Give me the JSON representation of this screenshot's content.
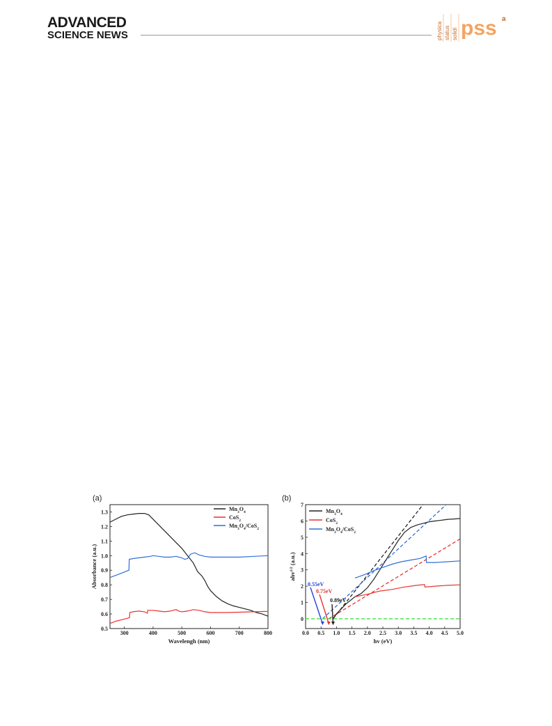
{
  "header": {
    "brand_line1": "ADVANCED",
    "brand_line2": "SCIENCE NEWS",
    "journal_vertical": [
      "physica",
      "status",
      "solidi"
    ],
    "journal_logo": "pss",
    "journal_suffix": "a",
    "colors": {
      "logo": "#f4a460",
      "text": "#1a1a1a",
      "rule": "#9a9a9a"
    }
  },
  "figure": {
    "panel_a_tag": "(a)",
    "panel_b_tag": "(b)",
    "panel_b_ylabel_main": "ahv",
    "panel_b_ylabel_sup": "1/2",
    "panel_b_ylabel_unit": " (a.u.)"
  },
  "chart_data": [
    {
      "type": "line",
      "title": "",
      "xlabel": "Wavelengh (nm)",
      "ylabel": "Absorbance (a.u.)",
      "xlim": [
        250,
        800
      ],
      "ylim": [
        0.5,
        1.35
      ],
      "xticks": [
        "300",
        "400",
        "500",
        "600",
        "700",
        "800"
      ],
      "yticks": [
        "0.5",
        "0.6",
        "0.7",
        "0.8",
        "0.9",
        "1.0",
        "1.1",
        "1.2",
        "1.3"
      ],
      "legend_position": "top-right",
      "series": [
        {
          "name": "Mn3O4",
          "color": "#222222",
          "x": [
            250,
            270,
            290,
            310,
            330,
            350,
            370,
            385,
            400,
            420,
            440,
            460,
            480,
            500,
            520,
            540,
            555,
            570,
            580,
            590,
            600,
            620,
            640,
            660,
            680,
            700,
            720,
            740,
            760,
            780,
            800
          ],
          "y": [
            1.23,
            1.25,
            1.27,
            1.28,
            1.285,
            1.29,
            1.29,
            1.28,
            1.25,
            1.21,
            1.17,
            1.13,
            1.09,
            1.05,
            1.0,
            0.95,
            0.89,
            0.86,
            0.83,
            0.79,
            0.76,
            0.72,
            0.69,
            0.67,
            0.655,
            0.645,
            0.635,
            0.625,
            0.61,
            0.6,
            0.585
          ]
        },
        {
          "name": "CoS2",
          "color": "#e8322e",
          "x": [
            250,
            270,
            290,
            310,
            318,
            319,
            330,
            350,
            370,
            380,
            381,
            400,
            420,
            440,
            460,
            480,
            490,
            500,
            520,
            540,
            560,
            580,
            600,
            650,
            700,
            750,
            800
          ],
          "y": [
            0.535,
            0.55,
            0.56,
            0.57,
            0.575,
            0.61,
            0.615,
            0.62,
            0.615,
            0.605,
            0.625,
            0.625,
            0.62,
            0.615,
            0.62,
            0.63,
            0.62,
            0.615,
            0.62,
            0.63,
            0.625,
            0.615,
            0.61,
            0.61,
            0.612,
            0.615,
            0.618
          ]
        },
        {
          "name": "Mn3O4/CoS2",
          "color": "#2f6fd6",
          "x": [
            250,
            270,
            290,
            316,
            317,
            330,
            350,
            370,
            390,
            400,
            420,
            440,
            460,
            480,
            500,
            510,
            520,
            530,
            545,
            560,
            580,
            600,
            650,
            700,
            750,
            800
          ],
          "y": [
            0.85,
            0.865,
            0.88,
            0.9,
            0.975,
            0.98,
            0.985,
            0.99,
            0.995,
            1.0,
            0.995,
            0.99,
            0.99,
            0.995,
            0.985,
            0.975,
            0.98,
            1.01,
            1.02,
            1.005,
            0.995,
            0.99,
            0.99,
            0.99,
            0.995,
            1.0
          ]
        }
      ]
    },
    {
      "type": "line",
      "title": "",
      "xlabel": "hv (eV)",
      "ylabel": "ahv1/2 (a.u.)",
      "xlim": [
        0,
        5
      ],
      "ylim": [
        -0.6,
        7
      ],
      "xticks": [
        "0.0",
        "0.5",
        "1.0",
        "1.5",
        "2.0",
        "2.5",
        "3.0",
        "3.5",
        "4.0",
        "4.5",
        "5.0"
      ],
      "yticks": [
        "0",
        "1",
        "2",
        "3",
        "4",
        "5",
        "6",
        "7"
      ],
      "legend_position": "top-left",
      "series": [
        {
          "name": "Mn3O4",
          "color": "#222222",
          "x": [
            0.89,
            1.0,
            1.3,
            1.6,
            1.8,
            2.0,
            2.2,
            2.4,
            2.6,
            2.8,
            3.0,
            3.2,
            3.4,
            3.6,
            3.8,
            4.0,
            4.2,
            4.4,
            4.6,
            4.8,
            5.0
          ],
          "y": [
            0.0,
            0.3,
            0.9,
            1.35,
            1.55,
            1.9,
            2.4,
            3.0,
            3.6,
            4.2,
            4.8,
            5.3,
            5.6,
            5.75,
            5.85,
            5.95,
            6.0,
            6.05,
            6.1,
            6.12,
            6.15
          ]
        },
        {
          "name": "CoS2",
          "color": "#e8322e",
          "x": [
            1.6,
            2.0,
            2.4,
            2.8,
            3.2,
            3.6,
            3.85,
            3.86,
            4.2,
            4.6,
            5.0
          ],
          "y": [
            1.35,
            1.5,
            1.7,
            1.8,
            1.95,
            2.05,
            2.1,
            1.95,
            2.0,
            2.05,
            2.08
          ]
        },
        {
          "name": "Mn3O4/CoS2",
          "color": "#2f6fd6",
          "x": [
            1.6,
            1.9,
            2.2,
            2.5,
            2.8,
            3.1,
            3.4,
            3.7,
            3.9,
            3.91,
            4.2,
            4.6,
            5.0
          ],
          "y": [
            2.5,
            2.7,
            2.95,
            3.15,
            3.35,
            3.5,
            3.6,
            3.7,
            3.85,
            3.45,
            3.45,
            3.5,
            3.55
          ]
        }
      ],
      "fit_lines": [
        {
          "color": "#222222",
          "x": [
            0.89,
            3.8
          ],
          "y": [
            0.0,
            7.0
          ]
        },
        {
          "color": "#2f6fd6",
          "x": [
            0.55,
            4.55
          ],
          "y": [
            0.0,
            7.0
          ]
        },
        {
          "color": "#e8322e",
          "x": [
            0.75,
            5.0
          ],
          "y": [
            0.0,
            4.9
          ]
        },
        {
          "color": "#44dd44",
          "x": [
            0.0,
            5.0
          ],
          "y": [
            0.0,
            0.0
          ]
        }
      ],
      "annotations": [
        {
          "text": "0.55eV",
          "color": "#2a3fd8",
          "value": 0.55
        },
        {
          "text": "0.75eV",
          "color": "#e8322e",
          "value": 0.75
        },
        {
          "text": "0.89eV",
          "color": "#222222",
          "value": 0.89
        }
      ]
    }
  ]
}
